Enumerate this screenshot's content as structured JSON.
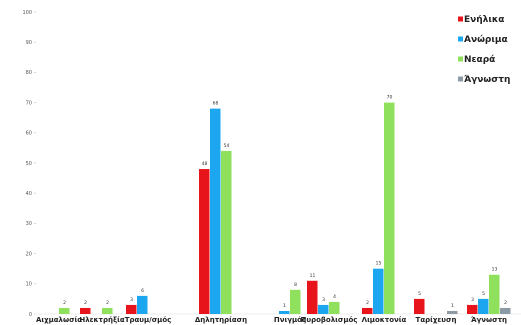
{
  "chart_data": {
    "type": "bar",
    "categories": [
      "Αιχμαλωσία",
      "Ηλεκτρήξία",
      "Τραυμ/σμός",
      "Δηλητηρίαση",
      "Πνιγμός",
      "Πυροβολισμός",
      "Λιμοκτονία",
      "Ταρίχευση",
      "Άγνωστη"
    ],
    "series": [
      {
        "name": "Ενήλικα",
        "color": "#e8141c",
        "values": [
          0,
          2,
          3,
          48,
          0,
          11,
          2,
          5,
          3
        ]
      },
      {
        "name": "Ανώριμα",
        "color": "#1ba6ef",
        "values": [
          0,
          0,
          6,
          68,
          1,
          3,
          15,
          0,
          5
        ]
      },
      {
        "name": "Νεαρά",
        "color": "#8fe05c",
        "values": [
          2,
          2,
          0,
          54,
          8,
          4,
          70,
          0,
          13
        ]
      },
      {
        "name": "Άγνωστη",
        "color": "#8c9aa5",
        "values": [
          0,
          0,
          0,
          0,
          0,
          0,
          0,
          1,
          2
        ]
      }
    ],
    "value_labels": [
      [
        "",
        "2",
        "3",
        "48",
        "",
        "11",
        "2",
        "5",
        "3"
      ],
      [
        "",
        "",
        "6",
        "68",
        "1",
        "3",
        "15",
        "",
        "5"
      ],
      [
        "2",
        "2",
        "",
        "54",
        "8",
        "4",
        "70",
        "",
        "13"
      ],
      [
        "",
        "",
        "",
        "",
        "",
        "",
        "",
        "1",
        "2"
      ]
    ],
    "ylim": [
      0,
      100
    ],
    "yticks": [
      0,
      10,
      20,
      30,
      40,
      50,
      60,
      70,
      80,
      90,
      100
    ],
    "grid": false,
    "legend_position": "top-right"
  }
}
